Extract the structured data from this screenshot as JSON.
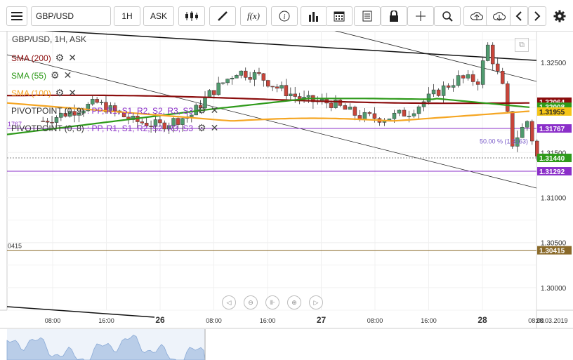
{
  "toolbar": {
    "symbol": "GBP/USD",
    "timeframe": "1H",
    "price_type": "ASK",
    "icons": [
      "menu-icon",
      "candles-icon",
      "draw-icon",
      "fx-icon",
      "info-icon",
      "bars-icon",
      "calendar-icon",
      "notes-icon",
      "lock-icon",
      "crosshair-icon",
      "zoom-icon",
      "upload-icon",
      "download-icon",
      "prev-icon",
      "next-icon",
      "gear-icon"
    ]
  },
  "chart_title": "GBP/USD, 1H, ASK",
  "indicators": [
    {
      "label": "SMA (200)",
      "color": "#8b0d0d"
    },
    {
      "label": "SMA (55)",
      "color": "#2e9a1a"
    },
    {
      "label": "SMA (100)",
      "color": "#f5a623"
    },
    {
      "label": "PIVOTPOINT (0, 9)",
      "suffix": ": PP, R1, S1, R2, S2, R3, S3",
      "color": "#8b2fc9"
    },
    {
      "label": "PIVOTPOINT (0, 8)",
      "suffix": ": PP, R1, S1, R2, S2, R3, S3",
      "color": "#8b2fc9"
    }
  ],
  "price_axis": {
    "ticks": [
      "1.32500",
      "1.31500",
      "1.31000",
      "1.30500",
      "1.30000"
    ],
    "range": [
      1.2975,
      1.3285
    ],
    "badges": [
      {
        "value": "1.32064",
        "bg": "#8b0d0d",
        "fg": "#ffffff",
        "y": 1.32064
      },
      {
        "value": "1.32008",
        "bg": "#2e9a1a",
        "fg": "#ffffff",
        "y": 1.32008
      },
      {
        "value": "1.31955",
        "bg": "#f5c518",
        "fg": "#222222",
        "y": 1.31955
      },
      {
        "value": "1.31767",
        "bg": "#8b2fc9",
        "fg": "#ffffff",
        "y": 1.31767
      },
      {
        "value": "1.31440",
        "bg": "#2e9a1a",
        "fg": "#ffffff",
        "y": 1.3144
      },
      {
        "value": "1.31292",
        "bg": "#8b2fc9",
        "fg": "#ffffff",
        "y": 1.31292
      },
      {
        "value": "1.30415",
        "bg": "#8a6a2a",
        "fg": "#ffffff",
        "y": 1.30415
      }
    ]
  },
  "time_axis": {
    "labels": [
      {
        "t": "08:00",
        "bold": false
      },
      {
        "t": "16:00",
        "bold": false
      },
      {
        "t": "26",
        "bold": true
      },
      {
        "t": "08:00",
        "bold": false
      },
      {
        "t": "16:00",
        "bold": false
      },
      {
        "t": "27",
        "bold": true
      },
      {
        "t": "08:00",
        "bold": false
      },
      {
        "t": "16:00",
        "bold": false
      },
      {
        "t": "28",
        "bold": true
      },
      {
        "t": "08:00",
        "bold": false
      },
      {
        "t": "28.03.2019",
        "bold": false
      }
    ]
  },
  "horizontal_lines": [
    {
      "label": "1767",
      "value": 1.31767,
      "color": "#8b2fc9"
    },
    {
      "label": "",
      "value": 1.31292,
      "color": "#8b2fc9"
    },
    {
      "label": "0415",
      "value": 1.30415,
      "color": "#8a6a2a"
    }
  ],
  "fib_label": "50.00 % (1.3163)",
  "candle_colors": {
    "up": "#4f9a6e",
    "down": "#c9453a"
  },
  "nav_buttons": [
    "scroll-left",
    "zoom-out",
    "reset-zoom",
    "zoom-in",
    "scroll-right"
  ]
}
